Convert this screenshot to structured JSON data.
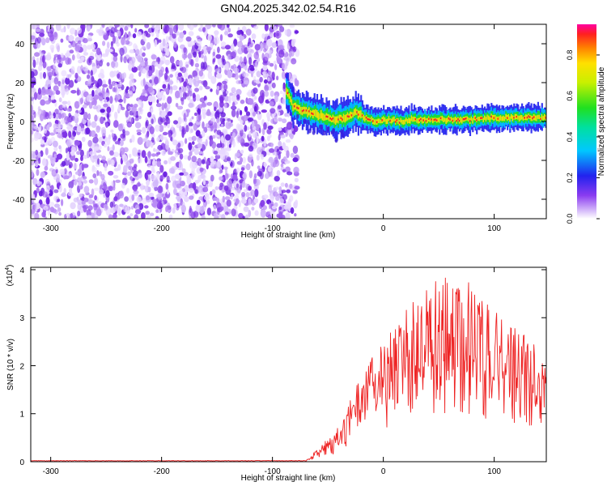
{
  "figure_title": "GN04.2025.342.02.54.R16",
  "chart_data": [
    {
      "type": "heatmap",
      "xlabel": "Height of straight line (km)",
      "ylabel": "Frequency (Hz)",
      "xlim": [
        -318,
        147
      ],
      "ylim": [
        -50,
        50
      ],
      "x_ticks": [
        -300,
        -200,
        -100,
        0,
        100
      ],
      "x_tick_labels": [
        "-300",
        "-200",
        "-100",
        "0",
        "100"
      ],
      "y_ticks": [
        -40,
        -20,
        0,
        20,
        40
      ],
      "y_tick_labels": [
        "-40",
        "-20",
        "0",
        "20",
        "40"
      ],
      "noise_region_x": [
        -318,
        -82
      ],
      "signal_track": {
        "x": [
          -88,
          -82,
          -75,
          -65,
          -55,
          -45,
          -35,
          -25,
          -15,
          -5,
          5,
          15,
          25,
          40,
          60,
          80,
          100,
          120,
          147
        ],
        "y": [
          16,
          8,
          6,
          4,
          3,
          1,
          2,
          5,
          1,
          0,
          1,
          0,
          1,
          1,
          1,
          1,
          2,
          2,
          2
        ]
      },
      "colorbar": {
        "label": "Normalized spectral amplitude",
        "range": [
          0,
          0.95
        ],
        "ticks": [
          0.0,
          0.2,
          0.4,
          0.6,
          0.8
        ],
        "tick_labels": [
          "0.0",
          "0.2",
          "0.4",
          "0.6",
          "0.8"
        ]
      }
    },
    {
      "type": "line",
      "xlabel": "Height of straight line (km)",
      "ylabel": "SNR (10 * v/v)",
      "scale_label": "(x10",
      "scale_exponent": "4",
      "scale_close": ")",
      "xlim": [
        -318,
        147
      ],
      "ylim": [
        0,
        4.05
      ],
      "x_ticks": [
        -300,
        -200,
        -100,
        0,
        100
      ],
      "x_tick_labels": [
        "-300",
        "-200",
        "-100",
        "0",
        "100"
      ],
      "y_ticks": [
        0,
        1,
        2,
        3,
        4
      ],
      "y_tick_labels": [
        "0",
        "1",
        "2",
        "3",
        "4"
      ],
      "series": [
        {
          "name": "SNR",
          "color": "#ee2222",
          "envelope_x": [
            -318,
            -70,
            -60,
            -50,
            -40,
            -30,
            -20,
            -10,
            0,
            10,
            20,
            30,
            40,
            50,
            60,
            70,
            80,
            90,
            100,
            110,
            120,
            130,
            140,
            147
          ],
          "envelope_y": [
            0.02,
            0.02,
            0.25,
            0.5,
            0.75,
            1.3,
            1.8,
            2.2,
            2.5,
            2.8,
            3.2,
            3.5,
            3.7,
            3.9,
            3.8,
            3.9,
            3.8,
            3.5,
            3.2,
            3.0,
            2.8,
            2.6,
            2.5,
            2.4
          ]
        }
      ]
    }
  ]
}
